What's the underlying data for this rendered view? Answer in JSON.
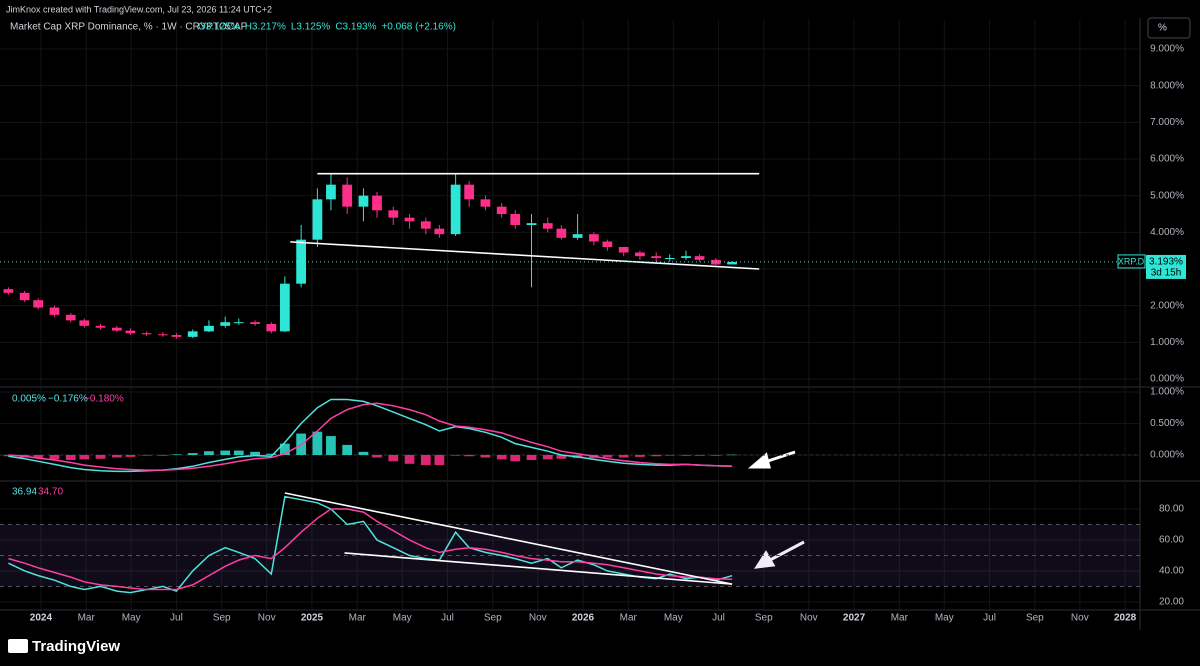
{
  "header": {
    "credit": "JimKnox created with TradingView.com, Jul 23, 2026 11:24 UTC+2",
    "symbol": "Market Cap XRP Dominance, % · 1W · CRYPTOCAP",
    "ohlc": [
      "O3.125%",
      "H3.217%",
      "L3.125%",
      "C3.193%",
      "+0.068 (+2.16%)"
    ],
    "scale_button": "%",
    "logo": "TradingView"
  },
  "chart_data": [
    {
      "type": "candlestick",
      "x": [
        2023.88,
        2023.94,
        2023.99,
        2024.05,
        2024.11,
        2024.16,
        2024.22,
        2024.28,
        2024.33,
        2024.39,
        2024.45,
        2024.5,
        2024.56,
        2024.62,
        2024.68,
        2024.73,
        2024.79,
        2024.85,
        2024.9,
        2024.96,
        2025.02,
        2025.07,
        2025.13,
        2025.19,
        2025.24,
        2025.3,
        2025.36,
        2025.42,
        2025.47,
        2025.53,
        2025.58,
        2025.64,
        2025.7,
        2025.75,
        2025.81,
        2025.87,
        2025.92,
        2025.98,
        2026.04,
        2026.09,
        2026.15,
        2026.21,
        2026.27,
        2026.32,
        2026.38,
        2026.43,
        2026.49,
        2026.55
      ],
      "open": [
        2.45,
        2.35,
        2.15,
        1.95,
        1.75,
        1.6,
        1.45,
        1.4,
        1.32,
        1.25,
        1.22,
        1.2,
        1.15,
        1.3,
        1.45,
        1.55,
        1.55,
        1.5,
        1.3,
        2.6,
        3.8,
        4.9,
        5.3,
        4.7,
        5.0,
        4.6,
        4.4,
        4.3,
        4.1,
        3.95,
        5.3,
        4.9,
        4.7,
        4.5,
        4.2,
        4.25,
        4.1,
        3.85,
        3.95,
        3.75,
        3.6,
        3.45,
        3.35,
        3.3,
        3.3,
        3.35,
        3.25,
        3.125
      ],
      "high": [
        2.5,
        2.4,
        2.2,
        2.0,
        1.8,
        1.65,
        1.5,
        1.45,
        1.38,
        1.3,
        1.28,
        1.25,
        1.35,
        1.6,
        1.7,
        1.65,
        1.6,
        1.55,
        2.8,
        4.2,
        5.2,
        5.6,
        5.5,
        5.2,
        5.1,
        4.7,
        4.5,
        4.4,
        4.2,
        5.6,
        5.4,
        5.0,
        4.8,
        4.6,
        4.5,
        4.4,
        4.2,
        4.5,
        4.0,
        3.8,
        3.6,
        3.5,
        3.45,
        3.4,
        3.5,
        3.4,
        3.3,
        3.217
      ],
      "low": [
        2.3,
        2.1,
        1.9,
        1.7,
        1.55,
        1.4,
        1.35,
        1.28,
        1.2,
        1.18,
        1.15,
        1.1,
        1.12,
        1.28,
        1.4,
        1.48,
        1.45,
        1.25,
        1.28,
        2.5,
        3.6,
        4.6,
        4.5,
        4.3,
        4.4,
        4.2,
        4.1,
        3.95,
        3.85,
        3.9,
        4.7,
        4.6,
        4.4,
        4.1,
        2.5,
        4.0,
        3.8,
        3.8,
        3.65,
        3.5,
        3.35,
        3.25,
        3.2,
        3.2,
        3.25,
        3.2,
        3.1,
        3.125
      ],
      "close": [
        2.35,
        2.15,
        1.95,
        1.75,
        1.6,
        1.45,
        1.4,
        1.32,
        1.25,
        1.22,
        1.2,
        1.15,
        1.3,
        1.45,
        1.55,
        1.55,
        1.5,
        1.3,
        2.6,
        3.8,
        4.9,
        5.3,
        4.7,
        5.0,
        4.6,
        4.4,
        4.3,
        4.1,
        3.95,
        5.3,
        4.9,
        4.7,
        4.5,
        4.2,
        4.25,
        4.1,
        3.85,
        3.95,
        3.75,
        3.6,
        3.45,
        3.35,
        3.3,
        3.3,
        3.35,
        3.25,
        3.125,
        3.193
      ],
      "up_color": "#2ee6d6",
      "down_color": "#ff2e88",
      "ylim": [
        -0.19,
        9.79
      ],
      "yticks": [
        {
          "value": 0,
          "label": "0.000%"
        },
        {
          "value": 1,
          "label": "1.000%"
        },
        {
          "value": 2,
          "label": "2.000%"
        },
        {
          "value": 3,
          "label": "3.000%"
        },
        {
          "value": 4,
          "label": "4.000%"
        },
        {
          "value": 5,
          "label": "5.000%"
        },
        {
          "value": 6,
          "label": "6.000%"
        },
        {
          "value": 7,
          "label": "7.000%"
        },
        {
          "value": 8,
          "label": "8.000%"
        },
        {
          "value": 9,
          "label": "9.000%"
        }
      ],
      "price_tag": {
        "symbol": "XRP.D",
        "label": "3.193%",
        "countdown": "3d 15h"
      },
      "drawings": [
        {
          "x": [
            2025.02,
            2026.65
          ],
          "y": [
            5.6,
            5.6
          ]
        },
        {
          "x": [
            2024.92,
            2026.65
          ],
          "y": [
            3.74,
            3.0
          ]
        }
      ],
      "grid": true
    },
    {
      "type": "macd",
      "legend": [
        "0.005%",
        "−0.176%",
        "−0.180%"
      ],
      "histogram": [
        -0.02,
        -0.04,
        -0.05,
        -0.07,
        -0.08,
        -0.07,
        -0.06,
        -0.04,
        -0.03,
        -0.01,
        0.0,
        0.01,
        0.03,
        0.06,
        0.07,
        0.07,
        0.05,
        0.02,
        0.18,
        0.34,
        0.37,
        0.3,
        0.16,
        0.05,
        -0.04,
        -0.1,
        -0.14,
        -0.16,
        -0.16,
        -0.01,
        -0.02,
        -0.04,
        -0.07,
        -0.1,
        -0.08,
        -0.07,
        -0.06,
        -0.05,
        -0.05,
        -0.04,
        -0.04,
        -0.03,
        -0.02,
        -0.01,
        0.0,
        0.0,
        0.0,
        0.005
      ],
      "positive_color": "#2ee6d6",
      "negative_color": "#ff2e88",
      "series": [
        {
          "color": "#4fe3e0",
          "values": [
            -0.02,
            -0.06,
            -0.1,
            -0.15,
            -0.2,
            -0.23,
            -0.25,
            -0.26,
            -0.26,
            -0.25,
            -0.24,
            -0.22,
            -0.18,
            -0.12,
            -0.07,
            -0.03,
            -0.01,
            -0.02,
            0.2,
            0.5,
            0.75,
            0.88,
            0.88,
            0.85,
            0.78,
            0.68,
            0.58,
            0.48,
            0.38,
            0.45,
            0.42,
            0.36,
            0.28,
            0.18,
            0.12,
            0.06,
            0.0,
            -0.03,
            -0.07,
            -0.1,
            -0.13,
            -0.15,
            -0.16,
            -0.16,
            -0.15,
            -0.16,
            -0.17,
            -0.176
          ]
        },
        {
          "color": "#ff3fa4",
          "values": [
            0.0,
            -0.02,
            -0.05,
            -0.08,
            -0.12,
            -0.16,
            -0.19,
            -0.22,
            -0.23,
            -0.24,
            -0.24,
            -0.23,
            -0.21,
            -0.18,
            -0.14,
            -0.1,
            -0.06,
            -0.04,
            0.02,
            0.16,
            0.38,
            0.58,
            0.72,
            0.8,
            0.82,
            0.78,
            0.72,
            0.64,
            0.54,
            0.46,
            0.44,
            0.4,
            0.35,
            0.28,
            0.2,
            0.13,
            0.06,
            0.02,
            -0.02,
            -0.06,
            -0.09,
            -0.12,
            -0.14,
            -0.15,
            -0.15,
            -0.16,
            -0.17,
            -0.18
          ]
        }
      ],
      "ylim": [
        -0.397,
        1.063
      ],
      "yticks": [
        {
          "value": 0,
          "label": "0.000%"
        },
        {
          "value": 0.5,
          "label": "0.500%"
        },
        {
          "value": 1,
          "label": "1.000%"
        }
      ]
    },
    {
      "type": "rsi",
      "legend": [
        "36.94",
        "34.70"
      ],
      "series": [
        {
          "color": "#4fe3e0",
          "values": [
            45,
            40,
            37,
            34,
            30,
            28,
            30,
            27,
            26,
            28,
            30,
            27,
            40,
            50,
            55,
            52,
            48,
            38,
            88,
            86,
            84,
            80,
            70,
            72,
            60,
            55,
            50,
            48,
            47,
            65,
            55,
            52,
            50,
            48,
            45,
            48,
            42,
            47,
            44,
            40,
            38,
            36,
            35,
            38,
            35,
            36,
            34,
            36.94
          ]
        },
        {
          "color": "#ff3fa4",
          "values": [
            48,
            45,
            42,
            39,
            36,
            33,
            31,
            30,
            29,
            28,
            28,
            28,
            31,
            37,
            43,
            47,
            50,
            48,
            55,
            65,
            74,
            80,
            80,
            78,
            72,
            66,
            60,
            55,
            52,
            54,
            55,
            54,
            52,
            50,
            48,
            47,
            46,
            46,
            45,
            44,
            42,
            40,
            38,
            37,
            36,
            36,
            35,
            34.7
          ]
        }
      ],
      "levels": [
        30,
        50,
        70
      ],
      "band_color": "rgba(126,87,194,0.12)",
      "ylim": [
        14.8,
        97.4
      ],
      "yticks": [
        {
          "value": 20,
          "label": "20.00"
        },
        {
          "value": 40,
          "label": "40.00"
        },
        {
          "value": 60,
          "label": "60.00"
        },
        {
          "value": 80,
          "label": "80.00"
        }
      ],
      "drawings": [
        {
          "x": [
            2024.9,
            2026.55
          ],
          "y": [
            90.3,
            31.5
          ]
        },
        {
          "x": [
            2025.12,
            2026.55
          ],
          "y": [
            51.6,
            31.5
          ]
        }
      ],
      "xlim": [
        2023.849,
        2028.055
      ],
      "xticks": [
        {
          "value": 2024.0,
          "label": "2024"
        },
        {
          "value": 2024.167,
          "label": "Mar"
        },
        {
          "value": 2024.333,
          "label": "May"
        },
        {
          "value": 2024.5,
          "label": "Jul"
        },
        {
          "value": 2024.667,
          "label": "Sep"
        },
        {
          "value": 2024.833,
          "label": "Nov"
        },
        {
          "value": 2025.0,
          "label": "2025"
        },
        {
          "value": 2025.167,
          "label": "Mar"
        },
        {
          "value": 2025.333,
          "label": "May"
        },
        {
          "value": 2025.5,
          "label": "Jul"
        },
        {
          "value": 2025.667,
          "label": "Sep"
        },
        {
          "value": 2025.833,
          "label": "Nov"
        },
        {
          "value": 2026.0,
          "label": "2026"
        },
        {
          "value": 2026.167,
          "label": "Mar"
        },
        {
          "value": 2026.333,
          "label": "May"
        },
        {
          "value": 2026.5,
          "label": "Jul"
        },
        {
          "value": 2026.667,
          "label": "Sep"
        },
        {
          "value": 2026.833,
          "label": "Nov"
        },
        {
          "value": 2027.0,
          "label": "2027"
        },
        {
          "value": 2027.167,
          "label": "Mar"
        },
        {
          "value": 2027.333,
          "label": "May"
        },
        {
          "value": 2027.5,
          "label": "Jul"
        },
        {
          "value": 2027.667,
          "label": "Sep"
        },
        {
          "value": 2027.833,
          "label": "Nov"
        },
        {
          "value": 2028.0,
          "label": "2028"
        }
      ]
    }
  ]
}
